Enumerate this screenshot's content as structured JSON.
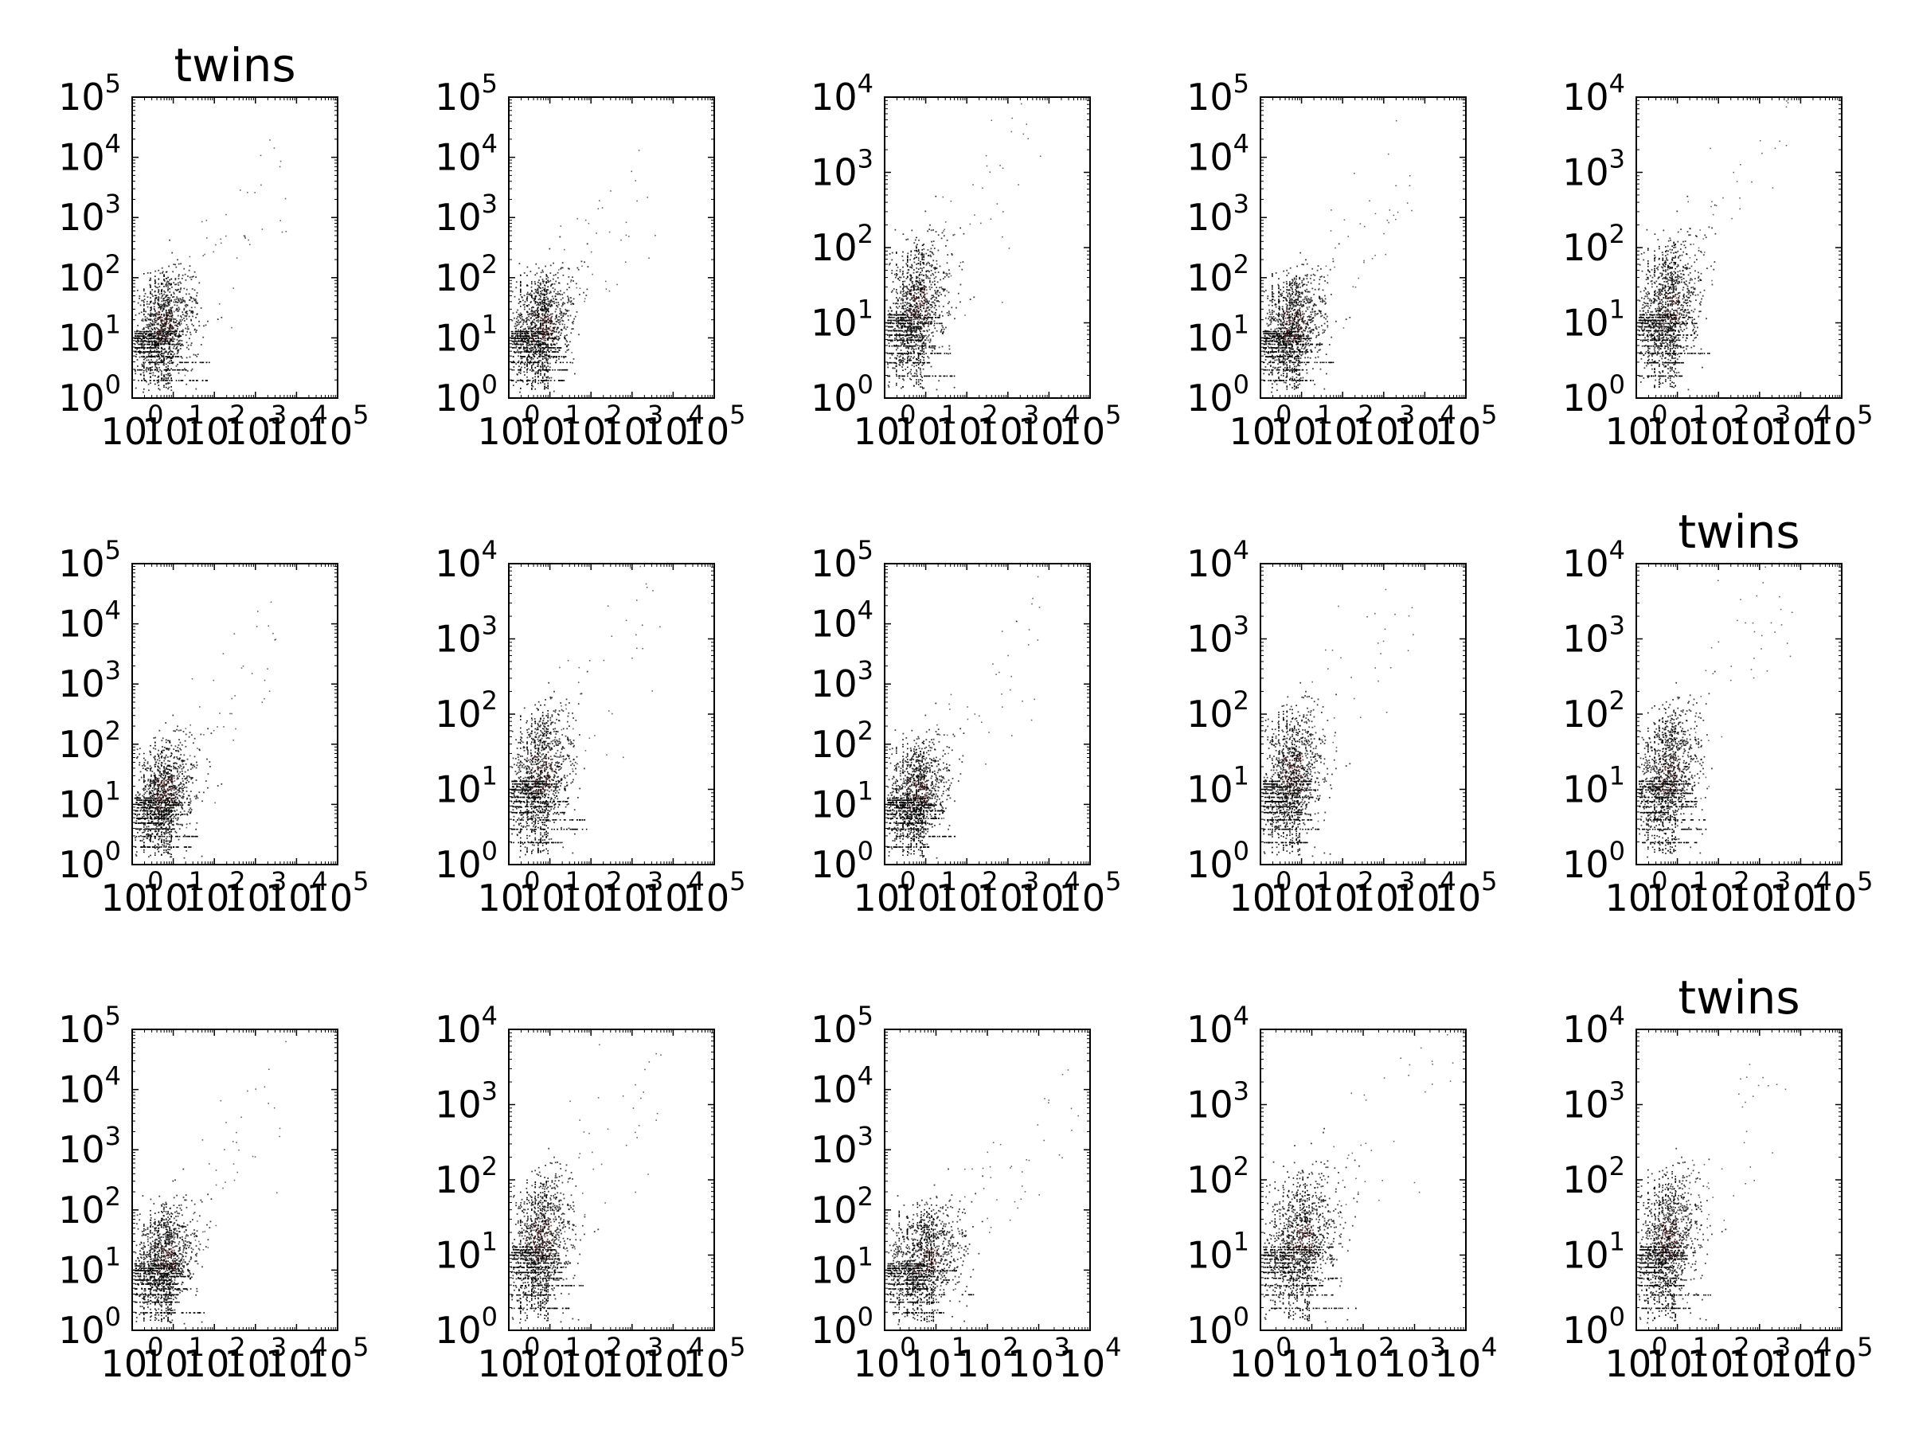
{
  "chart_data": [
    {
      "type": "scatter",
      "title": "twins",
      "xlim_exp": [
        0,
        5
      ],
      "ylim_exp": [
        0,
        5
      ],
      "yticks_exp": [
        0,
        1,
        2,
        3,
        4,
        5
      ],
      "xticks_exp": [
        0,
        1,
        2,
        3,
        4,
        5
      ],
      "x_scale": "log",
      "y_scale": "log",
      "point_color": "#000000",
      "core_color": "#5a1010"
    },
    {
      "type": "scatter",
      "title": "",
      "xlim_exp": [
        0,
        5
      ],
      "ylim_exp": [
        0,
        5
      ],
      "yticks_exp": [
        0,
        1,
        2,
        3,
        4,
        5
      ],
      "xticks_exp": [
        0,
        1,
        2,
        3,
        4,
        5
      ],
      "x_scale": "log",
      "y_scale": "log",
      "point_color": "#000000",
      "core_color": "#5a1010"
    },
    {
      "type": "scatter",
      "title": "",
      "xlim_exp": [
        0,
        5
      ],
      "ylim_exp": [
        0,
        4
      ],
      "yticks_exp": [
        0,
        1,
        2,
        3,
        4
      ],
      "xticks_exp": [
        0,
        1,
        2,
        3,
        4,
        5
      ],
      "x_scale": "log",
      "y_scale": "log",
      "point_color": "#000000",
      "core_color": "#5a1010"
    },
    {
      "type": "scatter",
      "title": "",
      "xlim_exp": [
        0,
        5
      ],
      "ylim_exp": [
        0,
        5
      ],
      "yticks_exp": [
        0,
        1,
        2,
        3,
        4,
        5
      ],
      "xticks_exp": [
        0,
        1,
        2,
        3,
        4,
        5
      ],
      "x_scale": "log",
      "y_scale": "log",
      "point_color": "#000000",
      "core_color": "#5a1010"
    },
    {
      "type": "scatter",
      "title": "",
      "xlim_exp": [
        0,
        5
      ],
      "ylim_exp": [
        0,
        4
      ],
      "yticks_exp": [
        0,
        1,
        2,
        3,
        4
      ],
      "xticks_exp": [
        0,
        1,
        2,
        3,
        4,
        5
      ],
      "x_scale": "log",
      "y_scale": "log",
      "point_color": "#000000",
      "core_color": "#5a1010"
    },
    {
      "type": "scatter",
      "title": "",
      "xlim_exp": [
        0,
        5
      ],
      "ylim_exp": [
        0,
        5
      ],
      "yticks_exp": [
        0,
        1,
        2,
        3,
        4,
        5
      ],
      "xticks_exp": [
        0,
        1,
        2,
        3,
        4,
        5
      ],
      "x_scale": "log",
      "y_scale": "log",
      "point_color": "#000000",
      "core_color": "#5a1010"
    },
    {
      "type": "scatter",
      "title": "",
      "xlim_exp": [
        0,
        5
      ],
      "ylim_exp": [
        0,
        4
      ],
      "yticks_exp": [
        0,
        1,
        2,
        3,
        4
      ],
      "xticks_exp": [
        0,
        1,
        2,
        3,
        4,
        5
      ],
      "x_scale": "log",
      "y_scale": "log",
      "point_color": "#000000",
      "core_color": "#5a1010"
    },
    {
      "type": "scatter",
      "title": "",
      "xlim_exp": [
        0,
        5
      ],
      "ylim_exp": [
        0,
        5
      ],
      "yticks_exp": [
        0,
        1,
        2,
        3,
        4,
        5
      ],
      "xticks_exp": [
        0,
        1,
        2,
        3,
        4,
        5
      ],
      "x_scale": "log",
      "y_scale": "log",
      "point_color": "#000000",
      "core_color": "#5a1010"
    },
    {
      "type": "scatter",
      "title": "",
      "xlim_exp": [
        0,
        5
      ],
      "ylim_exp": [
        0,
        4
      ],
      "yticks_exp": [
        0,
        1,
        2,
        3,
        4
      ],
      "xticks_exp": [
        0,
        1,
        2,
        3,
        4,
        5
      ],
      "x_scale": "log",
      "y_scale": "log",
      "point_color": "#000000",
      "core_color": "#5a1010"
    },
    {
      "type": "scatter",
      "title": "twins",
      "xlim_exp": [
        0,
        5
      ],
      "ylim_exp": [
        0,
        4
      ],
      "yticks_exp": [
        0,
        1,
        2,
        3,
        4
      ],
      "xticks_exp": [
        0,
        1,
        2,
        3,
        4,
        5
      ],
      "x_scale": "log",
      "y_scale": "log",
      "point_color": "#000000",
      "core_color": "#5a1010"
    },
    {
      "type": "scatter",
      "title": "",
      "xlim_exp": [
        0,
        5
      ],
      "ylim_exp": [
        0,
        5
      ],
      "yticks_exp": [
        0,
        1,
        2,
        3,
        4,
        5
      ],
      "xticks_exp": [
        0,
        1,
        2,
        3,
        4,
        5
      ],
      "x_scale": "log",
      "y_scale": "log",
      "point_color": "#000000",
      "core_color": "#5a1010"
    },
    {
      "type": "scatter",
      "title": "",
      "xlim_exp": [
        0,
        5
      ],
      "ylim_exp": [
        0,
        4
      ],
      "yticks_exp": [
        0,
        1,
        2,
        3,
        4
      ],
      "xticks_exp": [
        0,
        1,
        2,
        3,
        4,
        5
      ],
      "x_scale": "log",
      "y_scale": "log",
      "point_color": "#000000",
      "core_color": "#5a1010"
    },
    {
      "type": "scatter",
      "title": "",
      "xlim_exp": [
        0,
        4
      ],
      "ylim_exp": [
        0,
        5
      ],
      "yticks_exp": [
        0,
        1,
        2,
        3,
        4,
        5
      ],
      "xticks_exp": [
        0,
        1,
        2,
        3,
        4
      ],
      "x_scale": "log",
      "y_scale": "log",
      "point_color": "#000000",
      "core_color": "#5a1010"
    },
    {
      "type": "scatter",
      "title": "",
      "xlim_exp": [
        0,
        4
      ],
      "ylim_exp": [
        0,
        4
      ],
      "yticks_exp": [
        0,
        1,
        2,
        3,
        4
      ],
      "xticks_exp": [
        0,
        1,
        2,
        3,
        4
      ],
      "x_scale": "log",
      "y_scale": "log",
      "point_color": "#000000",
      "core_color": "#5a1010"
    },
    {
      "type": "scatter",
      "title": "twins",
      "xlim_exp": [
        0,
        5
      ],
      "ylim_exp": [
        0,
        4
      ],
      "yticks_exp": [
        0,
        1,
        2,
        3,
        4
      ],
      "xticks_exp": [
        0,
        1,
        2,
        3,
        4,
        5
      ],
      "x_scale": "log",
      "y_scale": "log",
      "point_color": "#000000",
      "core_color": "#5a1010"
    }
  ]
}
